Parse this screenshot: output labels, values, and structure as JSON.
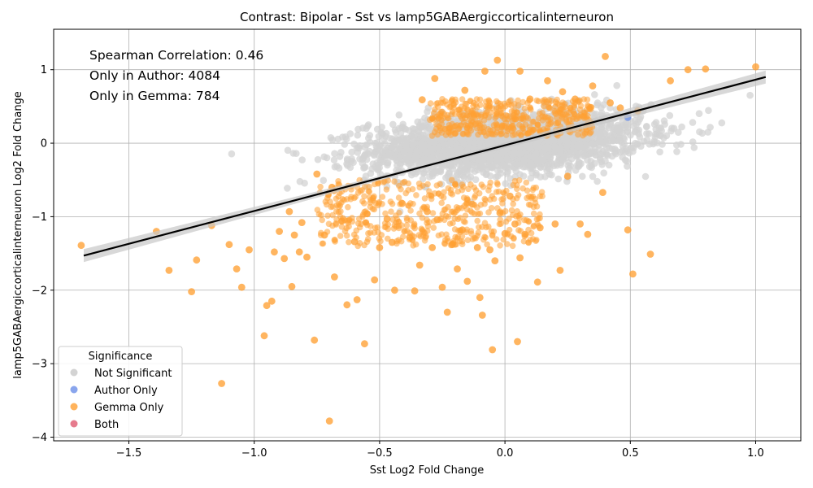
{
  "chart_data": {
    "type": "scatter",
    "title": "Contrast: Bipolar - Sst vs lamp5GABAergiccorticalinterneuron",
    "xlabel": "Sst Log2 Fold Change",
    "ylabel": "lamp5GABAergiccorticalinterneuron Log2 Fold Change",
    "xlim": [
      -1.8,
      1.18
    ],
    "ylim": [
      -4.05,
      1.55
    ],
    "x_ticks": [
      -1.5,
      -1.0,
      -0.5,
      0.0,
      0.5,
      1.0
    ],
    "x_tick_labels": [
      "−1.5",
      "−1.0",
      "−0.5",
      "0.0",
      "0.5",
      "1.0"
    ],
    "y_ticks": [
      -4,
      -3,
      -2,
      -1,
      0,
      1
    ],
    "y_tick_labels": [
      "−4",
      "−3",
      "−2",
      "−1",
      "0",
      "1"
    ],
    "grid": true,
    "annotations": [
      "Spearman Correlation: 0.46",
      "Only in Author: 4084",
      "Only in Gemma: 784"
    ],
    "legend": {
      "title": "Significance",
      "placement": "lower-left",
      "entries": [
        {
          "label": "Not Significant",
          "color": "#d3d3d3"
        },
        {
          "label": "Author Only",
          "color": "#6b8fe8"
        },
        {
          "label": "Gemma Only",
          "color": "#ffa033"
        },
        {
          "label": "Both",
          "color": "#e05a70"
        }
      ]
    },
    "regression_line": {
      "x": [
        -1.68,
        1.04
      ],
      "y": [
        -1.53,
        0.9
      ],
      "color": "#000000"
    },
    "series": [
      {
        "name": "Gemma Only",
        "color": "#ffa033",
        "points": [
          [
            -1.69,
            -1.39
          ],
          [
            -1.39,
            -1.2
          ],
          [
            -1.34,
            -1.73
          ],
          [
            -1.25,
            -2.02
          ],
          [
            -1.23,
            -1.59
          ],
          [
            -1.17,
            -1.12
          ],
          [
            -1.13,
            -3.27
          ],
          [
            -1.1,
            -1.38
          ],
          [
            -1.07,
            -1.71
          ],
          [
            -1.05,
            -1.96
          ],
          [
            -1.02,
            -1.45
          ],
          [
            -0.96,
            -2.62
          ],
          [
            -0.95,
            -2.21
          ],
          [
            -0.93,
            -2.15
          ],
          [
            -0.92,
            -1.48
          ],
          [
            -0.9,
            -1.2
          ],
          [
            -0.88,
            -1.57
          ],
          [
            -0.86,
            -0.93
          ],
          [
            -0.85,
            -1.95
          ],
          [
            -0.84,
            -1.25
          ],
          [
            -0.82,
            -1.48
          ],
          [
            -0.81,
            -1.08
          ],
          [
            -0.79,
            -1.55
          ],
          [
            -0.76,
            -2.68
          ],
          [
            -0.75,
            -0.42
          ],
          [
            -0.72,
            -1.25
          ],
          [
            -0.7,
            -3.78
          ],
          [
            -0.69,
            -0.6
          ],
          [
            -0.68,
            -1.82
          ],
          [
            -0.65,
            -1.06
          ],
          [
            -0.63,
            -2.2
          ],
          [
            -0.6,
            -1.34
          ],
          [
            -0.59,
            -2.13
          ],
          [
            -0.56,
            -2.73
          ],
          [
            -0.55,
            -0.96
          ],
          [
            -0.52,
            -1.86
          ],
          [
            -0.5,
            -1.42
          ],
          [
            -0.47,
            -1.03
          ],
          [
            -0.45,
            -1.35
          ],
          [
            -0.44,
            -2.0
          ],
          [
            -0.41,
            -0.82
          ],
          [
            -0.38,
            -1.28
          ],
          [
            -0.36,
            -2.01
          ],
          [
            -0.34,
            -1.66
          ],
          [
            -0.33,
            0.59
          ],
          [
            -0.31,
            -0.93
          ],
          [
            -0.29,
            -1.42
          ],
          [
            -0.28,
            0.88
          ],
          [
            -0.27,
            -1.04
          ],
          [
            -0.25,
            -1.96
          ],
          [
            -0.23,
            -2.3
          ],
          [
            -0.21,
            -1.38
          ],
          [
            -0.19,
            -1.71
          ],
          [
            -0.17,
            -1.18
          ],
          [
            -0.16,
            0.72
          ],
          [
            -0.15,
            -1.88
          ],
          [
            -0.13,
            -0.83
          ],
          [
            -0.11,
            -1.42
          ],
          [
            -0.1,
            -2.1
          ],
          [
            -0.09,
            -2.34
          ],
          [
            -0.08,
            0.98
          ],
          [
            -0.06,
            -1.45
          ],
          [
            -0.05,
            -2.81
          ],
          [
            -0.04,
            -1.6
          ],
          [
            -0.03,
            1.13
          ],
          [
            -0.02,
            -0.95
          ],
          [
            0.0,
            -1.23
          ],
          [
            0.02,
            -0.72
          ],
          [
            0.04,
            -1.1
          ],
          [
            0.05,
            -2.7
          ],
          [
            0.06,
            -1.56
          ],
          [
            0.06,
            0.98
          ],
          [
            0.08,
            -1.24
          ],
          [
            0.1,
            0.6
          ],
          [
            0.13,
            -1.89
          ],
          [
            0.14,
            -1.15
          ],
          [
            0.17,
            0.85
          ],
          [
            0.2,
            -1.1
          ],
          [
            0.22,
            -1.73
          ],
          [
            0.23,
            0.7
          ],
          [
            0.25,
            -0.45
          ],
          [
            0.28,
            0.6
          ],
          [
            0.3,
            -1.1
          ],
          [
            0.33,
            -1.24
          ],
          [
            0.35,
            0.78
          ],
          [
            0.39,
            -0.67
          ],
          [
            0.4,
            1.18
          ],
          [
            0.42,
            0.55
          ],
          [
            0.46,
            0.48
          ],
          [
            0.49,
            -1.18
          ],
          [
            0.51,
            -1.78
          ],
          [
            0.53,
            0.44
          ],
          [
            0.58,
            -1.51
          ],
          [
            0.66,
            0.85
          ],
          [
            0.73,
            1.0
          ],
          [
            0.8,
            1.01
          ],
          [
            1.0,
            1.04
          ]
        ]
      },
      {
        "name": "Author Only",
        "color": "#6b8fe8",
        "points": [
          [
            0.49,
            0.35
          ]
        ]
      }
    ]
  }
}
